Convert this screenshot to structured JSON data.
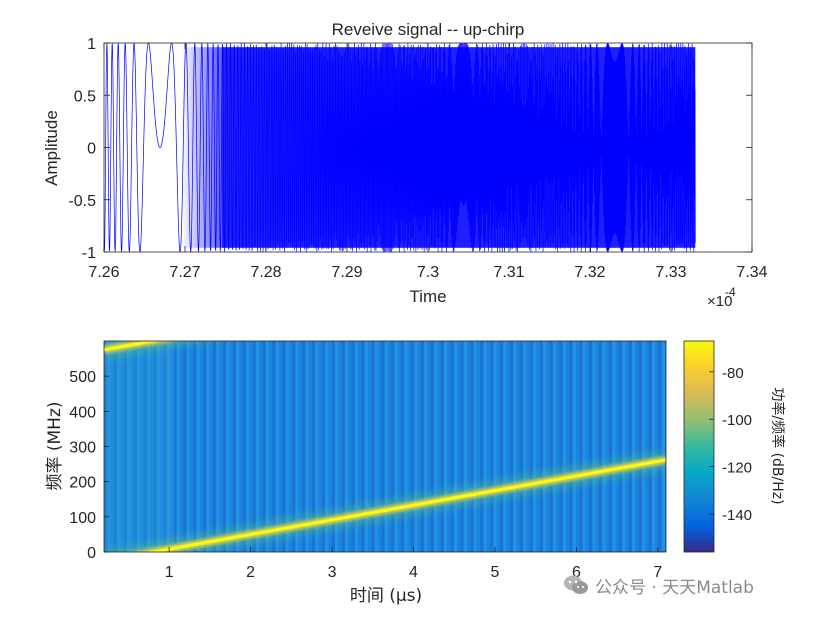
{
  "chart_data": [
    {
      "type": "line",
      "title": "Reveive signal -- up-chirp",
      "xlabel": "Time",
      "ylabel": "Amplitude",
      "xlim": [
        0.000726,
        0.000734
      ],
      "ylim": [
        -1,
        1
      ],
      "x_ticks": [
        "7.26",
        "7.27",
        "7.28",
        "7.29",
        "7.3",
        "7.31",
        "7.32",
        "7.33",
        "7.34"
      ],
      "y_ticks": [
        "1",
        "0.5",
        "0",
        "-0.5",
        "-1"
      ],
      "x_exponent_base": "×10",
      "x_exponent_power": "-4",
      "signal": {
        "x_start": 0.000726,
        "x_end": 0.0007333,
        "amplitude": 1,
        "color": "#0000ff"
      },
      "grid": false
    },
    {
      "type": "heatmap",
      "xlabel": "时间 (μs)",
      "ylabel": "频率 (MHz)",
      "xlim": [
        0.2,
        7.1
      ],
      "ylim": [
        0,
        600
      ],
      "x_ticks": [
        "1",
        "2",
        "3",
        "4",
        "5",
        "6",
        "7"
      ],
      "y_ticks": [
        "500",
        "400",
        "300",
        "200",
        "100",
        "0"
      ],
      "chirp_line": {
        "t_start_us": 0.2,
        "f_start_mhz": 575,
        "t_end_us": 7.1,
        "f_end_mhz": 262,
        "alias_at_mhz": 600
      },
      "colorbar": {
        "label": "功率/频率 (dB/Hz)",
        "ticks": [
          "-80",
          "-100",
          "-120",
          "-140"
        ],
        "range": [
          -156,
          -67
        ]
      }
    }
  ],
  "watermark": {
    "icon": "wechat-icon",
    "text": "公众号 · 天天Matlab"
  }
}
